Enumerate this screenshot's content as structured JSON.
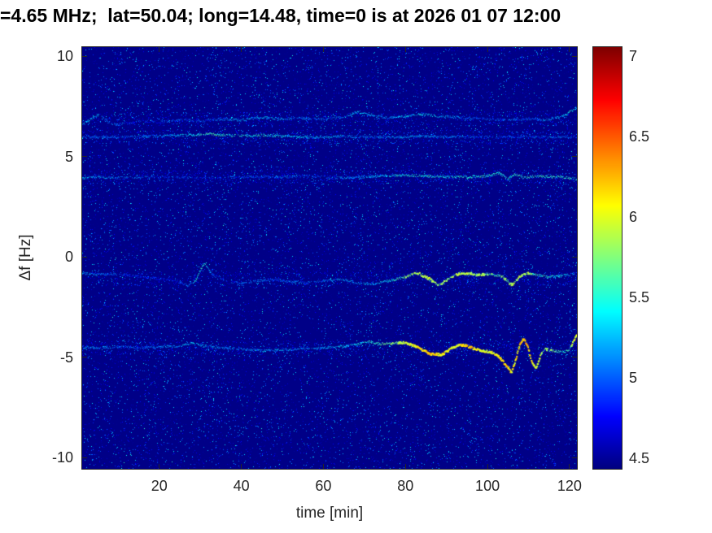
{
  "chart_data": {
    "type": "heatmap",
    "title": "=4.65 MHz;  lat=50.04; long=14.48, time=0 is at 2026 01 07 12:00",
    "xlabel": "time [min]",
    "ylabel": "Δf [Hz]",
    "xlim": [
      1,
      122
    ],
    "ylim": [
      -10.6,
      10.5
    ],
    "xticks": [
      20,
      40,
      60,
      80,
      100,
      120
    ],
    "yticks": [
      -10,
      -5,
      0,
      5,
      10
    ],
    "grid": false,
    "legend": false,
    "colorbar": {
      "min": 4.43,
      "max": 7.06,
      "ticks": [
        4.5,
        5,
        5.5,
        6,
        6.5,
        7
      ],
      "colormap": "jet",
      "position": "right"
    },
    "background_value": 4.45,
    "noise": {
      "density": 0.085,
      "value_min": 4.45,
      "value_max": 5.35,
      "bright_dots": 800
    },
    "traces": [
      {
        "name": "doppler-trace-plus7Hz",
        "base": 6.9,
        "band_noise": 800,
        "points": [
          [
            1,
            6.6,
            5.2
          ],
          [
            3,
            6.9,
            5.35
          ],
          [
            5,
            7.1,
            5.25
          ],
          [
            7,
            6.8,
            5.05
          ],
          [
            9,
            6.6,
            5.1
          ],
          [
            12,
            6.7,
            4.95
          ],
          [
            16,
            6.8,
            4.85
          ],
          [
            20,
            6.75,
            4.9
          ],
          [
            25,
            6.85,
            5.0
          ],
          [
            30,
            6.8,
            4.9
          ],
          [
            35,
            6.9,
            5.1
          ],
          [
            40,
            6.85,
            5.2
          ],
          [
            45,
            7.0,
            5.3
          ],
          [
            50,
            6.9,
            5.2
          ],
          [
            55,
            6.95,
            5.1
          ],
          [
            60,
            6.9,
            5.0
          ],
          [
            65,
            7.0,
            5.1
          ],
          [
            68,
            7.25,
            5.3
          ],
          [
            72,
            7.1,
            5.2
          ],
          [
            76,
            6.95,
            5.1
          ],
          [
            80,
            7.05,
            5.3
          ],
          [
            84,
            7.15,
            5.35
          ],
          [
            88,
            7.05,
            5.3
          ],
          [
            92,
            7.0,
            5.1
          ],
          [
            96,
            6.95,
            5.0
          ],
          [
            100,
            6.9,
            4.95
          ],
          [
            105,
            6.85,
            5.0
          ],
          [
            110,
            6.9,
            5.0
          ],
          [
            114,
            6.85,
            5.1
          ],
          [
            118,
            7.0,
            5.3
          ],
          [
            120,
            7.2,
            5.45
          ],
          [
            122,
            7.5,
            5.4
          ]
        ]
      },
      {
        "name": "doppler-trace-plus6Hz",
        "base": 6.0,
        "band_noise": 1100,
        "points": [
          [
            1,
            6.0,
            5.05
          ],
          [
            10,
            6.0,
            5.0
          ],
          [
            20,
            6.05,
            5.15
          ],
          [
            28,
            6.1,
            5.4
          ],
          [
            32,
            6.15,
            5.6
          ],
          [
            36,
            6.1,
            5.5
          ],
          [
            40,
            6.05,
            5.45
          ],
          [
            45,
            6.1,
            5.5
          ],
          [
            50,
            6.05,
            5.4
          ],
          [
            55,
            6.0,
            5.3
          ],
          [
            60,
            6.0,
            5.25
          ],
          [
            65,
            6.05,
            5.15
          ],
          [
            70,
            6.0,
            5.05
          ],
          [
            75,
            6.0,
            5.1
          ],
          [
            80,
            6.0,
            5.2
          ],
          [
            85,
            6.05,
            5.2
          ],
          [
            90,
            6.0,
            5.15
          ],
          [
            95,
            6.0,
            5.05
          ],
          [
            100,
            6.0,
            5.0
          ],
          [
            105,
            6.0,
            4.95
          ],
          [
            110,
            6.0,
            5.0
          ],
          [
            115,
            6.0,
            5.0
          ],
          [
            120,
            6.0,
            5.05
          ],
          [
            122,
            6.0,
            5.0
          ]
        ]
      },
      {
        "name": "doppler-trace-plus4Hz",
        "base": 4.0,
        "band_noise": 1100,
        "points": [
          [
            1,
            3.95,
            5.3
          ],
          [
            5,
            4.0,
            5.2
          ],
          [
            10,
            3.95,
            5.1
          ],
          [
            15,
            4.0,
            5.0
          ],
          [
            20,
            4.0,
            4.95
          ],
          [
            30,
            3.95,
            4.9
          ],
          [
            40,
            4.0,
            4.95
          ],
          [
            50,
            4.0,
            5.0
          ],
          [
            55,
            4.05,
            5.0
          ],
          [
            60,
            4.0,
            5.0
          ],
          [
            65,
            3.95,
            5.1
          ],
          [
            70,
            4.0,
            5.2
          ],
          [
            75,
            4.05,
            5.3
          ],
          [
            80,
            4.1,
            5.45
          ],
          [
            85,
            4.05,
            5.5
          ],
          [
            90,
            4.0,
            5.4
          ],
          [
            95,
            4.0,
            5.5
          ],
          [
            100,
            4.05,
            5.5
          ],
          [
            103,
            4.2,
            5.55
          ],
          [
            105,
            3.9,
            5.5
          ],
          [
            107,
            4.15,
            5.55
          ],
          [
            109,
            3.95,
            5.5
          ],
          [
            112,
            4.05,
            5.55
          ],
          [
            115,
            4.0,
            5.55
          ],
          [
            118,
            4.0,
            5.5
          ],
          [
            120,
            3.95,
            5.5
          ],
          [
            122,
            3.9,
            5.45
          ]
        ]
      },
      {
        "name": "doppler-trace-minus1Hz",
        "base": -1.1,
        "band_noise": 1000,
        "points": [
          [
            1,
            -0.8,
            5.2
          ],
          [
            4,
            -0.9,
            5.1
          ],
          [
            8,
            -0.85,
            5.0
          ],
          [
            12,
            -0.9,
            4.9
          ],
          [
            16,
            -1.0,
            4.85
          ],
          [
            20,
            -1.1,
            4.8
          ],
          [
            24,
            -1.2,
            4.85
          ],
          [
            27,
            -1.45,
            5.0
          ],
          [
            29,
            -1.1,
            5.5
          ],
          [
            30,
            -0.6,
            5.6
          ],
          [
            31,
            -0.35,
            5.5
          ],
          [
            33,
            -0.9,
            5.0
          ],
          [
            36,
            -1.2,
            4.9
          ],
          [
            40,
            -1.3,
            5.0
          ],
          [
            44,
            -1.2,
            5.1
          ],
          [
            48,
            -1.1,
            5.0
          ],
          [
            52,
            -1.25,
            5.1
          ],
          [
            56,
            -1.3,
            5.0
          ],
          [
            60,
            -1.2,
            5.1
          ],
          [
            64,
            -1.1,
            5.2
          ],
          [
            68,
            -1.3,
            5.2
          ],
          [
            72,
            -1.35,
            5.3
          ],
          [
            76,
            -1.2,
            5.4
          ],
          [
            80,
            -1.0,
            5.7
          ],
          [
            83,
            -0.8,
            5.8
          ],
          [
            86,
            -1.1,
            5.9
          ],
          [
            88,
            -1.4,
            5.8
          ],
          [
            90,
            -1.2,
            5.7
          ],
          [
            92,
            -0.9,
            5.8
          ],
          [
            95,
            -0.8,
            5.9
          ],
          [
            98,
            -0.9,
            5.8
          ],
          [
            100,
            -0.85,
            5.7
          ],
          [
            102,
            -0.9,
            5.6
          ],
          [
            104,
            -1.0,
            5.7
          ],
          [
            106,
            -1.4,
            5.8
          ],
          [
            108,
            -1.0,
            5.9
          ],
          [
            110,
            -0.8,
            5.8
          ],
          [
            112,
            -0.9,
            5.6
          ],
          [
            115,
            -1.0,
            5.5
          ],
          [
            118,
            -0.95,
            5.4
          ],
          [
            120,
            -0.9,
            5.3
          ],
          [
            122,
            -0.85,
            5.2
          ]
        ]
      },
      {
        "name": "doppler-trace-minus4p5Hz",
        "base": -4.55,
        "band_noise": 1100,
        "points": [
          [
            1,
            -4.5,
            5.2
          ],
          [
            5,
            -4.55,
            5.1
          ],
          [
            10,
            -4.5,
            5.0
          ],
          [
            15,
            -4.55,
            5.0
          ],
          [
            20,
            -4.5,
            5.1
          ],
          [
            25,
            -4.45,
            5.2
          ],
          [
            28,
            -4.3,
            5.3
          ],
          [
            31,
            -4.45,
            5.2
          ],
          [
            35,
            -4.55,
            5.1
          ],
          [
            40,
            -4.6,
            5.1
          ],
          [
            45,
            -4.7,
            5.2
          ],
          [
            50,
            -4.65,
            5.2
          ],
          [
            55,
            -4.6,
            5.1
          ],
          [
            60,
            -4.55,
            5.2
          ],
          [
            64,
            -4.5,
            5.3
          ],
          [
            68,
            -4.4,
            5.4
          ],
          [
            71,
            -4.25,
            5.5
          ],
          [
            74,
            -4.35,
            5.6
          ],
          [
            77,
            -4.3,
            5.7
          ],
          [
            80,
            -4.3,
            5.9
          ],
          [
            83,
            -4.5,
            6.1
          ],
          [
            86,
            -4.85,
            6.2
          ],
          [
            89,
            -4.9,
            6.1
          ],
          [
            91,
            -4.6,
            6.0
          ],
          [
            93,
            -4.4,
            6.1
          ],
          [
            95,
            -4.45,
            6.2
          ],
          [
            97,
            -4.6,
            6.1
          ],
          [
            99,
            -4.7,
            6.0
          ],
          [
            101,
            -4.75,
            6.0
          ],
          [
            103,
            -5.0,
            6.1
          ],
          [
            105,
            -5.5,
            6.2
          ],
          [
            106,
            -5.8,
            6.1
          ],
          [
            107,
            -5.2,
            6.0
          ],
          [
            108,
            -4.4,
            6.2
          ],
          [
            109,
            -4.1,
            6.25
          ],
          [
            110,
            -4.5,
            6.2
          ],
          [
            111,
            -5.3,
            6.1
          ],
          [
            112,
            -5.6,
            6.0
          ],
          [
            113,
            -5.0,
            5.9
          ],
          [
            114,
            -4.6,
            5.8
          ],
          [
            116,
            -4.7,
            5.7
          ],
          [
            118,
            -4.75,
            5.5
          ],
          [
            120,
            -4.7,
            5.5
          ],
          [
            121,
            -4.3,
            5.9
          ],
          [
            122,
            -3.9,
            6.0
          ]
        ]
      }
    ]
  }
}
